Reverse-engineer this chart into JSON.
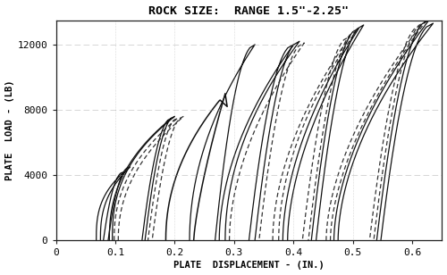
{
  "title": "ROCK SIZE:  RANGE 1.5\"-2.25\"",
  "xlabel": "PLATE  DISPLACEMENT - (IN.)",
  "ylabel": "PLATE  LOAD - (LB)",
  "xlim": [
    0,
    0.65
  ],
  "ylim": [
    0,
    13500
  ],
  "xticks": [
    0,
    0.1,
    0.2,
    0.3,
    0.4,
    0.5,
    0.6
  ],
  "yticks": [
    0,
    4000,
    8000,
    12000
  ],
  "background_color": "#ffffff",
  "line_color_solid": "#111111",
  "line_color_dashed": "#333333",
  "title_fontsize": 9.5,
  "axis_fontsize": 7.5,
  "tick_fontsize": 8
}
